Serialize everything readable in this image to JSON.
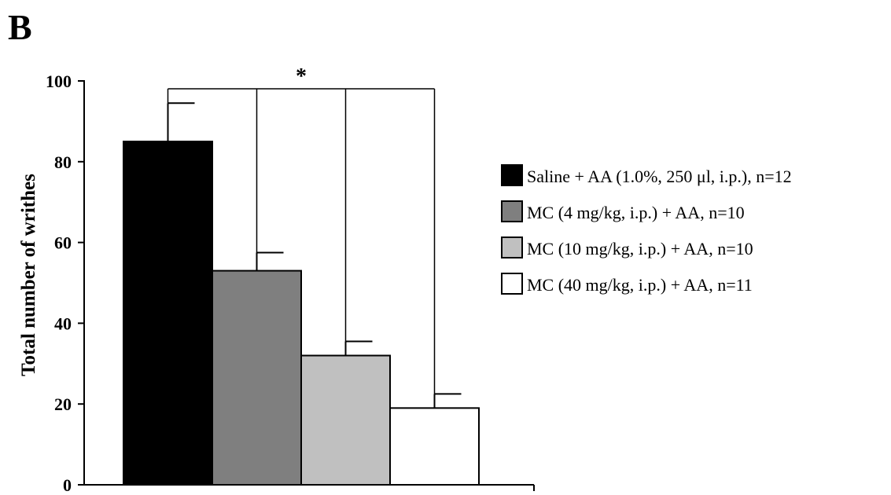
{
  "panel_label": "B",
  "chart_data": {
    "type": "bar",
    "ylabel": "Total number of writhes",
    "xlabel": "",
    "ylim": [
      0,
      100
    ],
    "yticks": [
      0,
      20,
      40,
      60,
      80,
      100
    ],
    "grid": false,
    "legend_position": "right",
    "series": [
      {
        "name": "Saline + AA (1.0%, 250 μl, i.p.), n=12",
        "value": 85,
        "error": 9.5,
        "color": "#000000"
      },
      {
        "name": "MC (4  mg/kg, i.p.) + AA, n=10",
        "value": 53,
        "error": 4.5,
        "color": "#7f7f7f"
      },
      {
        "name": "MC (10  mg/kg, i.p.) + AA, n=10",
        "value": 32,
        "error": 3.5,
        "color": "#c0c0c0"
      },
      {
        "name": "MC (40  mg/kg, i.p.) + AA, n=11",
        "value": 19,
        "error": 3.5,
        "color": "#ffffff"
      }
    ],
    "annotation": "*"
  }
}
